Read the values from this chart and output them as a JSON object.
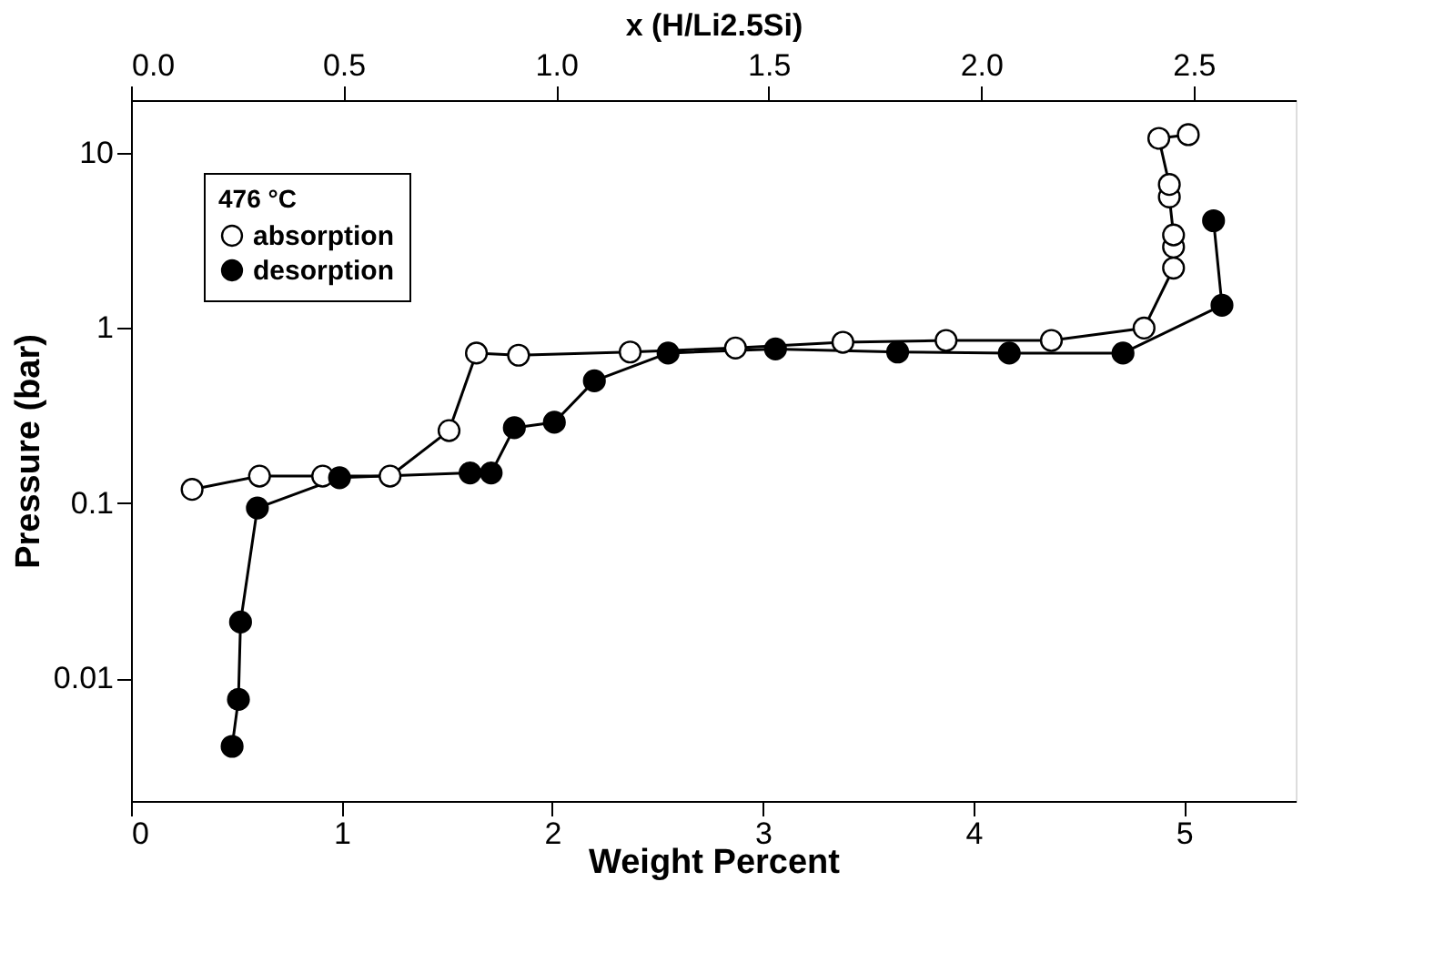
{
  "chart_data": {
    "type": "line",
    "xlabel": "Weight Percent",
    "ylabel": "Pressure  (bar)",
    "x2label": "x   (H/Li2.5Si)",
    "legend_title": "476 °C",
    "legend": "top left",
    "marker": "circle",
    "log": "y",
    "grid": false,
    "xlim": [
      0,
      5.53
    ],
    "xticks": [
      0,
      1,
      2,
      3,
      4,
      5
    ],
    "x2lim": [
      0,
      2.74
    ],
    "x2ticks": [
      {
        "value": 0,
        "label": "0.0"
      },
      {
        "value": 0.5,
        "label": "0.5"
      },
      {
        "value": 1,
        "label": "1.0"
      },
      {
        "value": 1.5,
        "label": "1.5"
      },
      {
        "value": 2,
        "label": "2.0"
      },
      {
        "value": 2.5,
        "label": "2.5"
      }
    ],
    "ylim": [
      0.002,
      20
    ],
    "yticks": [
      0.01,
      0.1,
      1,
      10
    ],
    "series": [
      {
        "name": "absorption",
        "color": "#000000",
        "x": [
          0.29,
          0.61,
          0.91,
          1.23,
          1.51,
          1.64,
          1.84,
          2.37,
          2.87,
          3.38,
          3.87,
          4.37,
          4.81,
          4.95,
          4.95,
          4.95,
          4.93,
          4.93,
          4.88,
          5.02
        ],
        "values": [
          0.12,
          0.143,
          0.143,
          0.143,
          0.26,
          0.72,
          0.7,
          0.73,
          0.77,
          0.83,
          0.85,
          0.85,
          1.0,
          2.2,
          2.9,
          3.4,
          5.6,
          6.6,
          12.1,
          12.7
        ]
      },
      {
        "name": "desorption",
        "color": "#000000",
        "x": [
          5.14,
          5.18,
          4.71,
          4.17,
          3.64,
          3.06,
          2.55,
          2.2,
          2.01,
          1.82,
          1.71,
          1.61,
          0.99,
          0.6,
          0.52,
          0.51,
          0.48
        ],
        "values": [
          4.1,
          1.35,
          0.72,
          0.72,
          0.73,
          0.76,
          0.72,
          0.5,
          0.29,
          0.27,
          0.149,
          0.149,
          0.14,
          0.094,
          0.021,
          0.0076,
          0.0041
        ]
      }
    ]
  }
}
